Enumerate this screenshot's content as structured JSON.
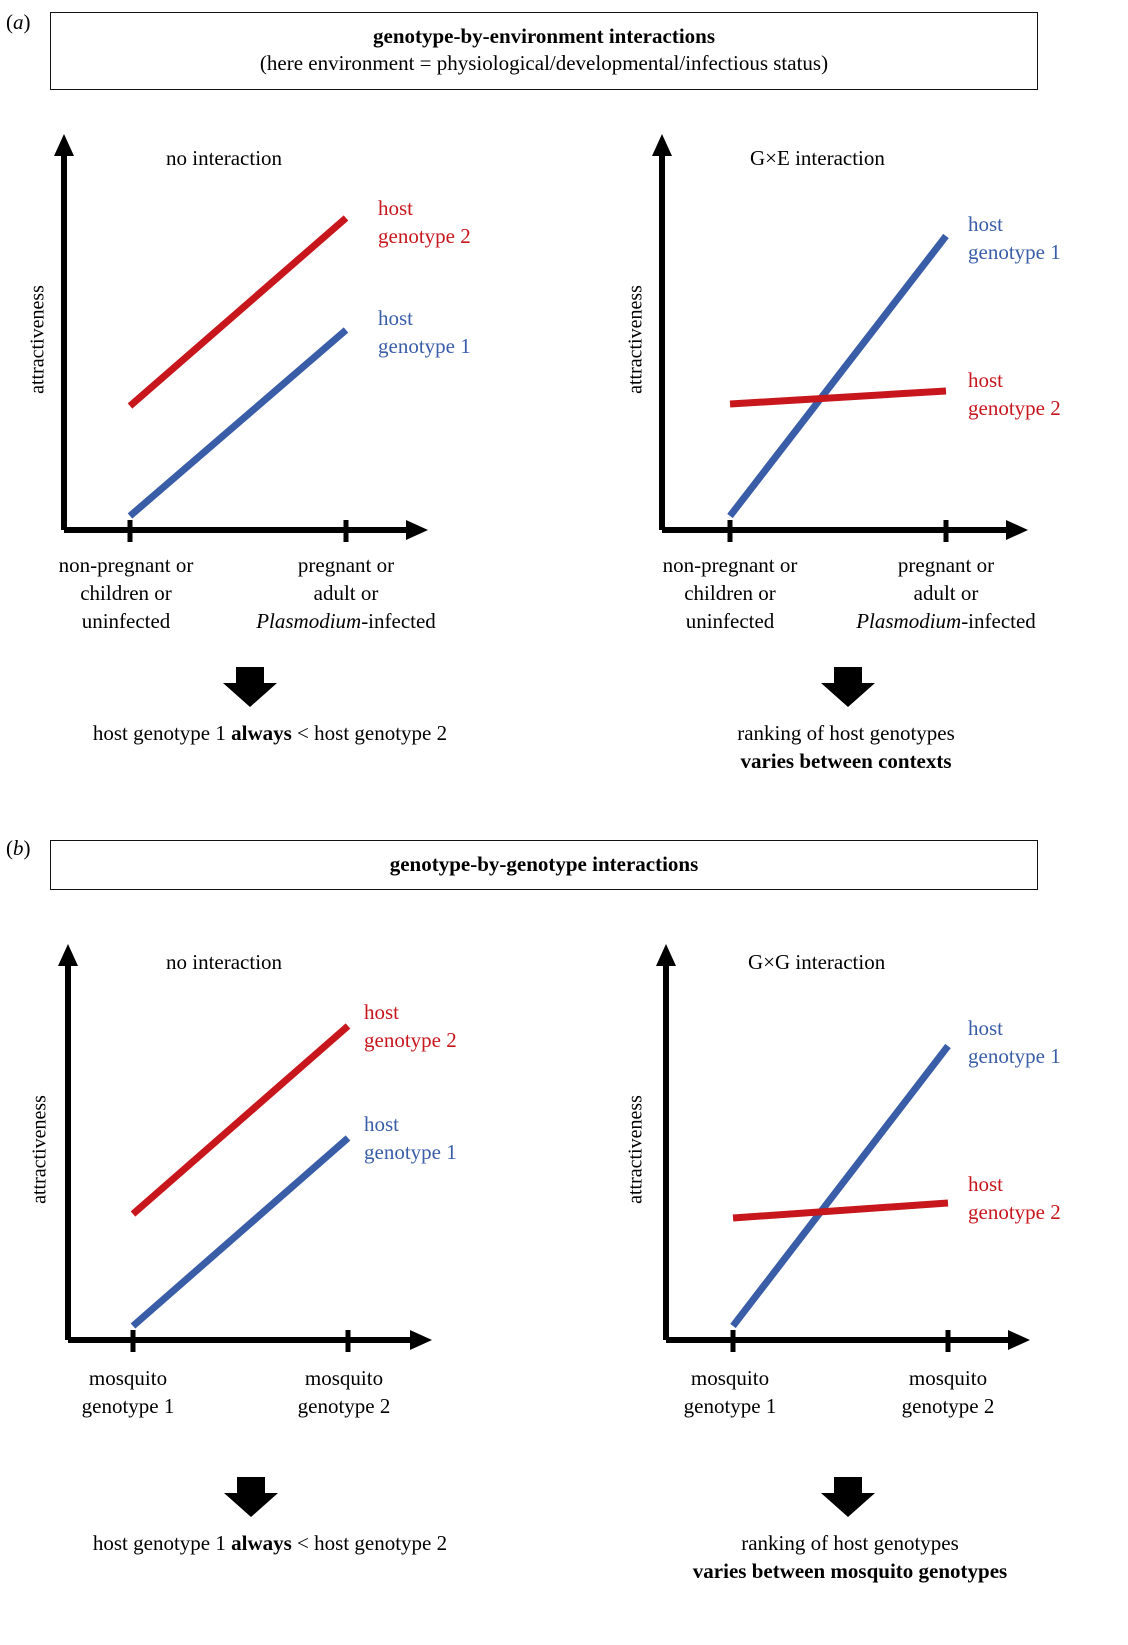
{
  "colors": {
    "red": "#c8161d",
    "blue": "#3a5da8",
    "axis": "#000000"
  },
  "panel_a": {
    "label_open": "(",
    "label_letter": "a",
    "label_close": ")",
    "box_line1": "genotype-by-environment interactions",
    "box_line2": "(here environment = physiological/developmental/infectious status)",
    "left": {
      "title": "no interaction",
      "ylabel": "attractiveness",
      "xlabel_left": [
        "non-pregnant or",
        "children or",
        "uninfected"
      ],
      "xlabel_right_line1": "pregnant or",
      "xlabel_right_line2": "adult or",
      "xlabel_right_italic": "Plasmodium",
      "xlabel_right_suffix": "-infected",
      "series_top": {
        "word1": "host",
        "word2": "genotype 2"
      },
      "series_bottom": {
        "word1": "host",
        "word2": "genotype 1"
      },
      "conclusion_pre": "host genotype 1 ",
      "conclusion_bold": "always",
      "conclusion_post": " < host genotype 2"
    },
    "right": {
      "title": "G×E interaction",
      "ylabel": "attractiveness",
      "xlabel_left": [
        "non-pregnant or",
        "children or",
        "uninfected"
      ],
      "xlabel_right_line1": "pregnant or",
      "xlabel_right_line2": "adult or",
      "xlabel_right_italic": "Plasmodium",
      "xlabel_right_suffix": "-infected",
      "series_top": {
        "word1": "host",
        "word2": "genotype 1"
      },
      "series_bottom": {
        "word1": "host",
        "word2": "genotype 2"
      },
      "conclusion_line1": "ranking of host genotypes",
      "conclusion_line2": "varies between contexts"
    }
  },
  "panel_b": {
    "label_open": "(",
    "label_letter": "b",
    "label_close": ")",
    "box_line1": "genotype-by-genotype interactions",
    "left": {
      "title": "no interaction",
      "ylabel": "attractiveness",
      "xlabel_left": [
        "mosquito",
        "genotype 1"
      ],
      "xlabel_right": [
        "mosquito",
        "genotype 2"
      ],
      "series_top": {
        "word1": "host",
        "word2": "genotype 2"
      },
      "series_bottom": {
        "word1": "host",
        "word2": "genotype 1"
      },
      "conclusion_pre": "host genotype 1 ",
      "conclusion_bold": "always",
      "conclusion_post": " < host genotype 2"
    },
    "right": {
      "title": "G×G interaction",
      "ylabel": "attractiveness",
      "xlabel_left": [
        "mosquito",
        "genotype 1"
      ],
      "xlabel_right": [
        "mosquito",
        "genotype 2"
      ],
      "series_top": {
        "word1": "host",
        "word2": "genotype 1"
      },
      "series_bottom": {
        "word1": "host",
        "word2": "genotype 2"
      },
      "conclusion_line1": "ranking of host genotypes",
      "conclusion_line2": "varies between mosquito genotypes"
    }
  }
}
